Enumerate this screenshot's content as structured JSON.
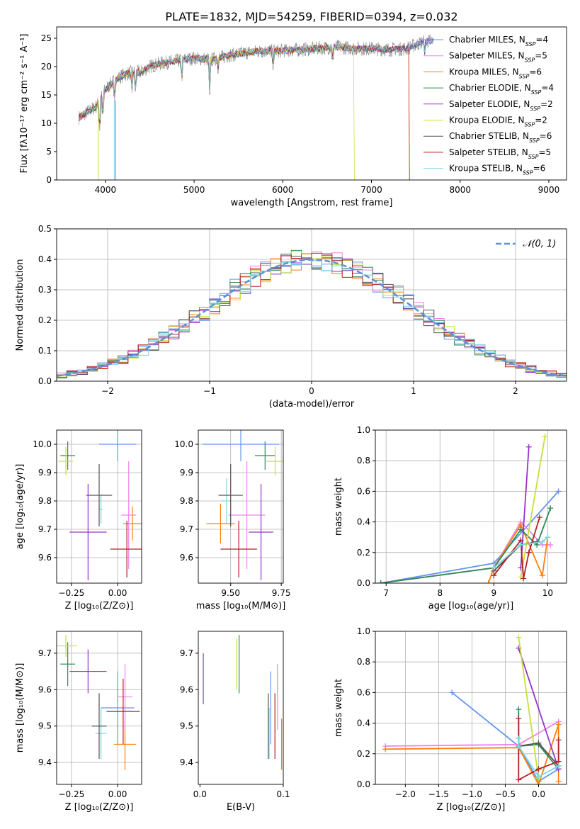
{
  "colors": [
    "#6495ed",
    "#ee82ee",
    "#ff7f0e",
    "#2e8b57",
    "#9932cc",
    "#c6e03a",
    "#555555",
    "#b22222",
    "#7fd6e0"
  ],
  "chart_data": [
    {
      "id": "spectrum",
      "type": "line",
      "title": "PLATE=1832, MJD=54259, FIBERID=0394, z=0.032",
      "xlabel": "wavelength [Angstrom, rest frame]",
      "ylabel": "Flux [fλ10⁻¹⁷ erg cm⁻² s⁻¹ A⁻¹]",
      "xlim": [
        3450,
        9200
      ],
      "ylim": [
        0,
        27
      ],
      "xticks": [
        4000,
        5000,
        6000,
        7000,
        8000,
        9000
      ],
      "yticks": [
        0,
        5,
        10,
        15,
        20,
        25
      ],
      "grid": false,
      "legend_position": "right",
      "legend": [
        "Chabrier MILES, N_SSP=4",
        "Salpeter MILES, N_SSP=5",
        "Kroupa MILES, N_SSP=6",
        "Chabrier ELODIE, N_SSP=4",
        "Salpeter ELODIE, N_SSP=2",
        "Kroupa ELODIE, N_SSP=2",
        "Chabrier STELIB, N_SSP=6",
        "Salpeter STELIB, N_SSP=5",
        "Kroupa STELIB, N_SSP=6"
      ],
      "continuum": [
        [
          3700,
          11
        ],
        [
          3800,
          12
        ],
        [
          3900,
          13
        ],
        [
          4000,
          16
        ],
        [
          4100,
          17.5
        ],
        [
          4200,
          18.5
        ],
        [
          4300,
          19
        ],
        [
          4400,
          19
        ],
        [
          4500,
          20
        ],
        [
          4600,
          20.5
        ],
        [
          4800,
          21
        ],
        [
          5000,
          21.5
        ],
        [
          5200,
          21.2
        ],
        [
          5400,
          22
        ],
        [
          5600,
          22.5
        ],
        [
          5800,
          22.8
        ],
        [
          6000,
          22.8
        ],
        [
          6200,
          23
        ],
        [
          6400,
          23.2
        ],
        [
          6600,
          23.5
        ],
        [
          6800,
          23.2
        ],
        [
          7000,
          23.2
        ],
        [
          7200,
          23
        ],
        [
          7400,
          23.2
        ],
        [
          7600,
          24.5
        ],
        [
          7700,
          24.5
        ]
      ],
      "model_range": [
        {
          "series": 0,
          "xmax": 7700
        },
        {
          "series": 1,
          "xmax": 7700
        },
        {
          "series": 2,
          "xmax": 7420
        },
        {
          "series": 3,
          "xmax": 7700
        },
        {
          "series": 4,
          "xmax": 7700
        },
        {
          "series": 5,
          "xmax": 6800
        },
        {
          "series": 6,
          "xmax": 7700
        },
        {
          "series": 7,
          "xmax": 7420
        },
        {
          "series": 8,
          "xmax": 7700
        }
      ]
    },
    {
      "id": "residuals",
      "type": "bar",
      "xlabel": "(data-model)/error",
      "ylabel": "Normed distribution",
      "xlim": [
        -2.5,
        2.5
      ],
      "ylim": [
        0,
        0.5
      ],
      "xticks": [
        -2,
        -1,
        0,
        1,
        2
      ],
      "yticks": [
        0.0,
        0.1,
        0.2,
        0.3,
        0.4,
        0.5
      ],
      "bin_width": 0.1,
      "grid": true,
      "legend_position": "top-right",
      "legend_label": "𝒩(0, 1)"
    },
    {
      "id": "age-Z",
      "type": "scatter",
      "xlabel": "Z [log₁₀(Z/Z⊙)]",
      "ylabel": "age  [log₁₀(age/yr)]",
      "xlim": [
        -0.33,
        0.13
      ],
      "ylim": [
        9.51,
        10.05
      ],
      "xticks": [
        -0.25,
        0.0
      ],
      "yticks": [
        9.6,
        9.7,
        9.8,
        9.9,
        10.0
      ],
      "grid": true,
      "points": [
        {
          "s": 0,
          "x": 0.0,
          "xerr": 0.1,
          "y": 10.0,
          "yerr": 0.06
        },
        {
          "s": 8,
          "x": -0.09,
          "xerr": 0.01,
          "y": 9.77,
          "yerr": 0.05
        },
        {
          "s": 2,
          "x": 0.08,
          "xerr": 0.05,
          "y": 9.72,
          "yerr": 0.06
        },
        {
          "s": 1,
          "x": 0.06,
          "xerr": 0.04,
          "y": 9.75,
          "yerr": 0.19
        },
        {
          "s": 3,
          "x": -0.27,
          "xerr": 0.04,
          "y": 9.96,
          "yerr": 0.05
        },
        {
          "s": 5,
          "x": -0.28,
          "xerr": 0.04,
          "y": 9.94,
          "yerr": 0.05
        },
        {
          "s": 6,
          "x": -0.1,
          "xerr": 0.07,
          "y": 9.82,
          "yerr": 0.11
        },
        {
          "s": 4,
          "x": -0.16,
          "xerr": 0.1,
          "y": 9.69,
          "yerr": 0.17
        },
        {
          "s": 7,
          "x": 0.05,
          "xerr": 0.09,
          "y": 9.63,
          "yerr": 0.1
        }
      ]
    },
    {
      "id": "age-mass",
      "type": "scatter",
      "xlabel": "mass [log₁₀(M/M⊙)]",
      "xlim": [
        9.34,
        9.76
      ],
      "ylim": [
        9.51,
        10.05
      ],
      "xticks": [
        9.5,
        9.75
      ],
      "yticks": [
        9.6,
        9.7,
        9.8,
        9.9,
        10.0
      ],
      "grid": true,
      "points": [
        {
          "s": 0,
          "x": 9.55,
          "xerr": 0.19,
          "y": 10.0,
          "yerr": 0.06
        },
        {
          "s": 8,
          "x": 9.48,
          "xerr": 0.02,
          "y": 9.8,
          "yerr": 0.08
        },
        {
          "s": 2,
          "x": 9.45,
          "xerr": 0.07,
          "y": 9.72,
          "yerr": 0.07
        },
        {
          "s": 1,
          "x": 9.58,
          "xerr": 0.09,
          "y": 9.75,
          "yerr": 0.19
        },
        {
          "s": 3,
          "x": 9.67,
          "xerr": 0.05,
          "y": 9.96,
          "yerr": 0.05
        },
        {
          "s": 5,
          "x": 9.72,
          "xerr": 0.05,
          "y": 9.94,
          "yerr": 0.05
        },
        {
          "s": 6,
          "x": 9.5,
          "xerr": 0.06,
          "y": 9.82,
          "yerr": 0.11
        },
        {
          "s": 4,
          "x": 9.65,
          "xerr": 0.06,
          "y": 9.69,
          "yerr": 0.17
        },
        {
          "s": 7,
          "x": 9.54,
          "xerr": 0.09,
          "y": 9.63,
          "yerr": 0.1
        }
      ]
    },
    {
      "id": "weight-age",
      "type": "line",
      "xlabel": "age  [log₁₀(age/yr)]",
      "ylabel": "mass weight",
      "xlim": [
        6.8,
        10.35
      ],
      "ylim": [
        0,
        1
      ],
      "xticks": [
        7,
        8,
        9,
        10
      ],
      "yticks": [
        0.0,
        0.2,
        0.4,
        0.6,
        0.8,
        1.0
      ],
      "grid": true,
      "series": [
        {
          "s": 0,
          "x": [
            6.9,
            9.0,
            10.2
          ],
          "y": [
            0.0,
            0.13,
            0.6
          ]
        },
        {
          "s": 1,
          "x": [
            6.9,
            9.0,
            9.5,
            9.9,
            10.05
          ],
          "y": [
            0.0,
            0.1,
            0.4,
            0.25,
            0.25
          ]
        },
        {
          "s": 2,
          "x": [
            8.9,
            9.0,
            9.5,
            9.9,
            10.0
          ],
          "y": [
            0.0,
            0.1,
            0.38,
            0.05,
            0.3
          ]
        },
        {
          "s": 3,
          "x": [
            6.9,
            9.0,
            9.5,
            9.8,
            10.05
          ],
          "y": [
            0.0,
            0.1,
            0.35,
            0.25,
            0.49
          ]
        },
        {
          "s": 4,
          "x": [
            9.5,
            9.65
          ],
          "y": [
            0.1,
            0.89
          ]
        },
        {
          "s": 5,
          "x": [
            9.5,
            9.95
          ],
          "y": [
            0.04,
            0.96
          ]
        },
        {
          "s": 6,
          "x": [
            9.0,
            9.5,
            9.8
          ],
          "y": [
            0.08,
            0.25,
            0.27
          ]
        },
        {
          "s": 7,
          "x": [
            9.0,
            9.5,
            9.55,
            9.65,
            9.85
          ],
          "y": [
            0.05,
            0.28,
            0.03,
            0.2,
            0.43
          ]
        },
        {
          "s": 8,
          "x": [
            9.0,
            9.5,
            9.9,
            10.0
          ],
          "y": [
            0.1,
            0.25,
            0.27,
            0.3
          ]
        }
      ]
    },
    {
      "id": "mass-Z",
      "type": "scatter",
      "xlabel": "Z [log₁₀(Z/Z⊙)]",
      "ylabel": "mass [log₁₀(M/M⊙)]",
      "xlim": [
        -0.33,
        0.13
      ],
      "ylim": [
        9.34,
        9.76
      ],
      "xticks": [
        -0.25,
        0.0
      ],
      "yticks": [
        9.4,
        9.5,
        9.6,
        9.7
      ],
      "grid": true,
      "points": [
        {
          "s": 0,
          "x": 0.0,
          "xerr": 0.09,
          "y": 9.55,
          "yerr": 0.1
        },
        {
          "s": 8,
          "x": -0.09,
          "xerr": 0.03,
          "y": 9.48,
          "yerr": 0.07
        },
        {
          "s": 2,
          "x": 0.04,
          "xerr": 0.06,
          "y": 9.45,
          "yerr": 0.07
        },
        {
          "s": 1,
          "x": 0.04,
          "xerr": 0.04,
          "y": 9.58,
          "yerr": 0.09
        },
        {
          "s": 3,
          "x": -0.27,
          "xerr": 0.04,
          "y": 9.67,
          "yerr": 0.06
        },
        {
          "s": 5,
          "x": -0.28,
          "xerr": 0.06,
          "y": 9.72,
          "yerr": 0.03
        },
        {
          "s": 6,
          "x": -0.1,
          "xerr": 0.04,
          "y": 9.5,
          "yerr": 0.09
        },
        {
          "s": 4,
          "x": -0.16,
          "xerr": 0.1,
          "y": 9.65,
          "yerr": 0.06
        },
        {
          "s": 7,
          "x": 0.03,
          "xerr": 0.09,
          "y": 9.54,
          "yerr": 0.09
        }
      ]
    },
    {
      "id": "mass-EBV",
      "type": "scatter",
      "xlabel": "E(B-V)",
      "xlim": [
        -0.002,
        0.1
      ],
      "ylim": [
        9.34,
        9.76
      ],
      "xticks": [
        0.0,
        0.1
      ],
      "yticks": [
        9.4,
        9.5,
        9.6,
        9.7
      ],
      "grid": false,
      "points": [
        {
          "s": 4,
          "x": 0.004,
          "y": 9.63,
          "yerr": 0.07
        },
        {
          "s": 5,
          "x": 0.044,
          "y": 9.67,
          "yerr": 0.07
        },
        {
          "s": 3,
          "x": 0.047,
          "y": 9.67,
          "yerr": 0.08
        },
        {
          "s": 6,
          "x": 0.082,
          "y": 9.5,
          "yerr": 0.09
        },
        {
          "s": 8,
          "x": 0.083,
          "y": 9.48,
          "yerr": 0.07
        },
        {
          "s": 0,
          "x": 0.085,
          "y": 9.55,
          "yerr": 0.1
        },
        {
          "s": 7,
          "x": 0.09,
          "y": 9.5,
          "yerr": 0.09
        },
        {
          "s": 1,
          "x": 0.093,
          "y": 9.58,
          "yerr": 0.09
        },
        {
          "s": 2,
          "x": 0.098,
          "y": 9.45,
          "yerr": 0.07
        }
      ]
    },
    {
      "id": "weight-Z",
      "type": "line",
      "xlabel": "Z [log₁₀(Z/Z⊙)]",
      "ylabel": "mass weight",
      "xlim": [
        -2.45,
        0.42
      ],
      "ylim": [
        0,
        1
      ],
      "xticks": [
        -2.0,
        -1.5,
        -1.0,
        -0.5,
        0.0
      ],
      "yticks": [
        0.0,
        0.2,
        0.4,
        0.6,
        0.8,
        1.0
      ],
      "grid": true,
      "series": [
        {
          "s": 0,
          "x": [
            -1.3,
            -0.3,
            0.0,
            0.3
          ],
          "y": [
            0.6,
            0.25,
            0.02,
            0.1
          ]
        },
        {
          "s": 1,
          "x": [
            -2.3,
            -0.3,
            0.3,
            0.3
          ],
          "y": [
            0.25,
            0.26,
            0.41,
            0.1
          ]
        },
        {
          "s": 2,
          "x": [
            -2.3,
            -0.3,
            0.0,
            0.3,
            0.3
          ],
          "y": [
            0.23,
            0.24,
            0.0,
            0.39,
            0.02
          ]
        },
        {
          "s": 3,
          "x": [
            -0.3,
            -0.3,
            0.0,
            0.3
          ],
          "y": [
            0.49,
            0.25,
            0.26,
            0.1
          ]
        },
        {
          "s": 4,
          "x": [
            -0.3,
            0.3
          ],
          "y": [
            0.89,
            0.1
          ]
        },
        {
          "s": 5,
          "x": [
            -0.3,
            0.0
          ],
          "y": [
            0.96,
            0.04
          ]
        },
        {
          "s": 6,
          "x": [
            -0.3,
            0.0,
            0.3
          ],
          "y": [
            0.25,
            0.27,
            0.12
          ]
        },
        {
          "s": 7,
          "x": [
            -0.3,
            -0.3,
            0.0,
            0.3,
            0.3
          ],
          "y": [
            0.43,
            0.03,
            0.1,
            0.15,
            0.29
          ]
        },
        {
          "s": 8,
          "x": [
            -0.3,
            -0.3,
            0.0,
            0.3
          ],
          "y": [
            0.3,
            0.25,
            0.05,
            0.12
          ]
        }
      ]
    }
  ]
}
